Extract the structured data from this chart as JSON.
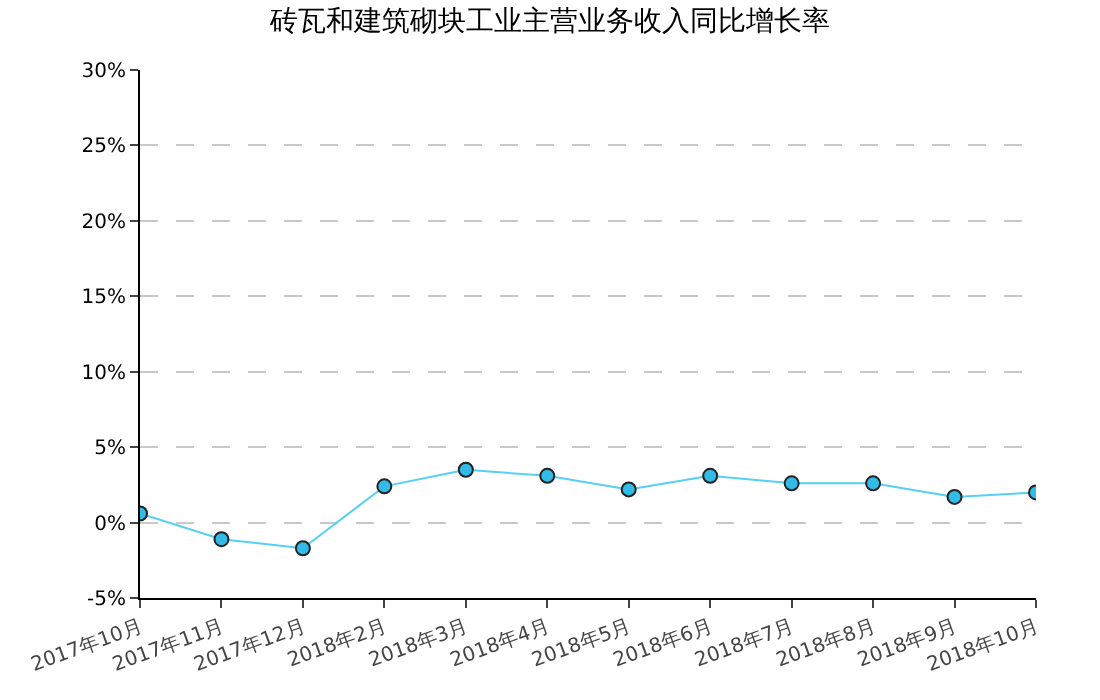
{
  "chart_data": {
    "type": "line",
    "title": "砖瓦和建筑砌块工业主营业务收入同比增长率",
    "categories": [
      "2017年10月",
      "2017年11月",
      "2017年12月",
      "2018年2月",
      "2018年3月",
      "2018年4月",
      "2018年5月",
      "2018年6月",
      "2018年7月",
      "2018年8月",
      "2018年9月",
      "2018年10月"
    ],
    "series": [
      {
        "color": "#55cff5",
        "values": [
          0.6,
          -1.1,
          -1.7,
          2.4,
          3.5,
          3.1,
          2.2,
          3.1,
          2.6,
          2.6,
          1.7,
          2.0
        ]
      }
    ],
    "ylim": [
      -5,
      30
    ],
    "yticks": [
      {
        "value": -5,
        "label": "-5%"
      },
      {
        "value": 0,
        "label": "0%"
      },
      {
        "value": 5,
        "label": "5%"
      },
      {
        "value": 10,
        "label": "10%"
      },
      {
        "value": 15,
        "label": "15%"
      },
      {
        "value": 20,
        "label": "20%"
      },
      {
        "value": 25,
        "label": "25%"
      },
      {
        "value": 30,
        "label": "30%"
      }
    ],
    "grid": "y",
    "marker": "circle",
    "line_style": "solid"
  }
}
